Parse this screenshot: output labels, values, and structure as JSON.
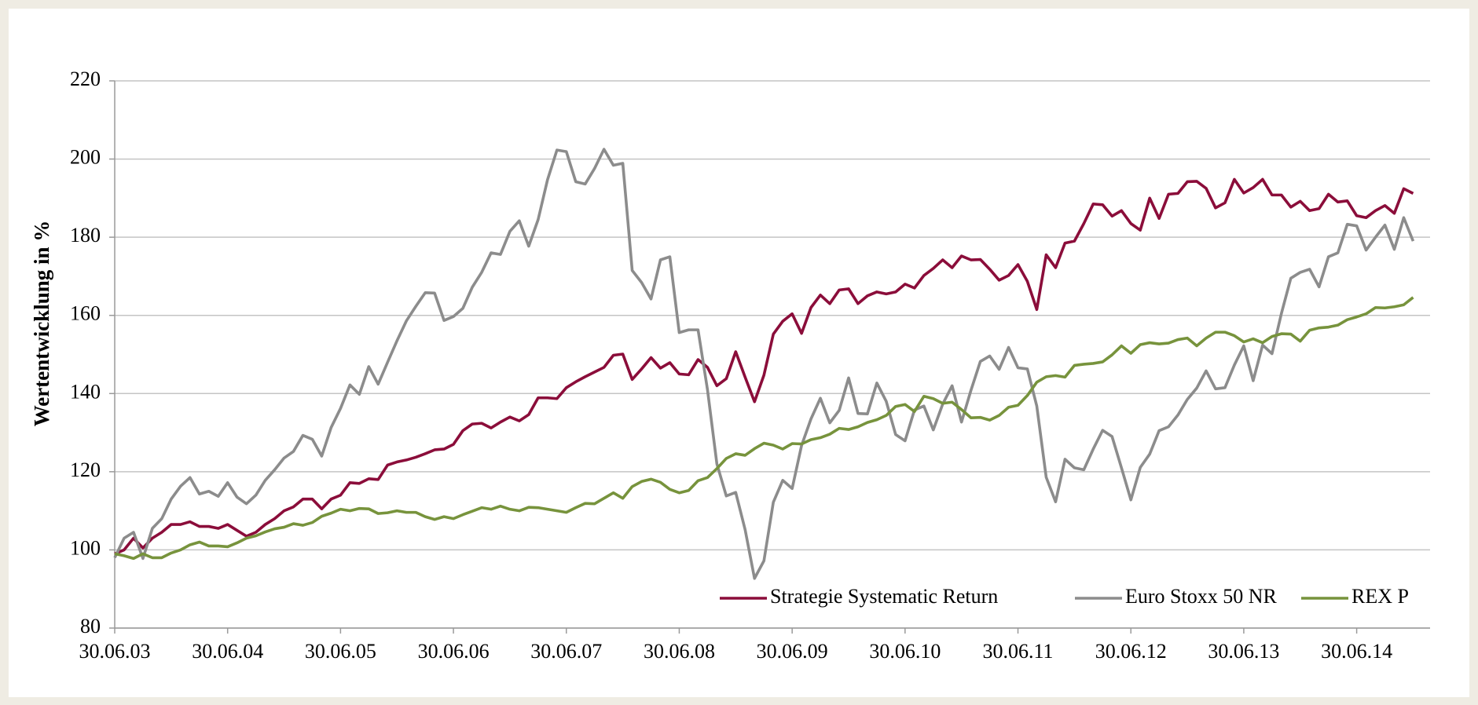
{
  "chart_data": {
    "type": "line",
    "y_label": "Wertentwicklung in %",
    "categories": [
      "30.06.03",
      null,
      null,
      null,
      null,
      null,
      null,
      null,
      null,
      null,
      null,
      null,
      "30.06.04",
      null,
      null,
      null,
      null,
      null,
      null,
      null,
      null,
      null,
      null,
      null,
      "30.06.05",
      null,
      null,
      null,
      null,
      null,
      null,
      null,
      null,
      null,
      null,
      null,
      "30.06.06",
      null,
      null,
      null,
      null,
      null,
      null,
      null,
      null,
      null,
      null,
      null,
      "30.06.07",
      null,
      null,
      null,
      null,
      null,
      null,
      null,
      null,
      null,
      null,
      null,
      "30.06.08",
      null,
      null,
      null,
      null,
      null,
      null,
      null,
      null,
      null,
      null,
      null,
      "30.06.09",
      null,
      null,
      null,
      null,
      null,
      null,
      null,
      null,
      null,
      null,
      null,
      "30.06.10",
      null,
      null,
      null,
      null,
      null,
      null,
      null,
      null,
      null,
      null,
      null,
      "30.06.11",
      null,
      null,
      null,
      null,
      null,
      null,
      null,
      null,
      null,
      null,
      null,
      "30.06.12",
      null,
      null,
      null,
      null,
      null,
      null,
      null,
      null,
      null,
      null,
      null,
      "30.06.13",
      null,
      null,
      null,
      null,
      null,
      null,
      null,
      null,
      null,
      null,
      null,
      "30.06.14",
      null,
      null,
      null,
      null,
      null,
      null
    ],
    "series": [
      {
        "name": "Strategie Systematic Return",
        "color": "#8b0d3a",
        "values": [
          99,
          100,
          103,
          100.5,
          103,
          104.5,
          106.5,
          106.5,
          107.2,
          106,
          106,
          105.5,
          106.5,
          105,
          103.5,
          104.5,
          106.5,
          108,
          110,
          111,
          113,
          113,
          110.5,
          113,
          114,
          117.2,
          117,
          118.2,
          118,
          121.7,
          122.5,
          123,
          123.7,
          124.6,
          125.6,
          125.8,
          127,
          130.5,
          132.2,
          132.4,
          131.2,
          132.7,
          134,
          133,
          134.6,
          138.9,
          138.9,
          138.7,
          141.5,
          143,
          144.3,
          145.5,
          146.7,
          149.8,
          150.1,
          143.6,
          146.3,
          149.2,
          146.5,
          147.9,
          145,
          144.8,
          148.7,
          146.7,
          142,
          143.8,
          150.7,
          144.2,
          137.9,
          144.7,
          155.2,
          158.5,
          160.4,
          155.4,
          162,
          165.2,
          163,
          166.5,
          166.8,
          163,
          165,
          166,
          165.5,
          166,
          168,
          167,
          170.2,
          172,
          174.2,
          172.2,
          175.2,
          174.2,
          174.3,
          171.8,
          169,
          170.2,
          173,
          168.7,
          161.5,
          175.5,
          172.2,
          178.5,
          179,
          183.5,
          188.5,
          188.3,
          185.4,
          186.8,
          183.5,
          181.8,
          190,
          184.8,
          191,
          191.2,
          194.2,
          194.3,
          192.5,
          187.5,
          188.8,
          194.8,
          191.3,
          192.7,
          194.8,
          190.8,
          190.8,
          187.7,
          189.2,
          186.8,
          187.3,
          191,
          189,
          189.3,
          185.5,
          185,
          186.8,
          188.1,
          186.1,
          192.4,
          191.2
        ]
      },
      {
        "name": "Euro Stoxx 50 NR",
        "color": "#8c8c8c",
        "values": [
          98,
          103,
          104.5,
          97.8,
          105.5,
          108,
          113,
          116.3,
          118.5,
          114.3,
          115,
          113.7,
          117.2,
          113.5,
          111.8,
          114,
          117.8,
          120.5,
          123.5,
          125.2,
          129.3,
          128.3,
          124,
          131.3,
          136.2,
          142.2,
          139.8,
          146.9,
          142.4,
          148,
          153.5,
          158.6,
          162.3,
          165.8,
          165.7,
          158.7,
          159.7,
          161.8,
          167.2,
          171,
          176,
          175.6,
          181.5,
          184.2,
          177.7,
          184.5,
          194.7,
          202.3,
          201.9,
          194.2,
          193.6,
          197.6,
          202.5,
          198.4,
          198.9,
          171.5,
          168.4,
          164.2,
          174.2,
          175,
          155.6,
          156.3,
          156.3,
          141,
          122,
          113.8,
          114.7,
          105.2,
          92.7,
          97.2,
          112.2,
          117.8,
          115.7,
          126.7,
          133.5,
          138.8,
          132.5,
          135.7,
          144,
          134.9,
          134.8,
          142.7,
          138,
          129.5,
          127.9,
          135.8,
          136.8,
          130.7,
          137.3,
          142,
          132.7,
          140.8,
          148.2,
          149.6,
          146.2,
          151.8,
          146.6,
          146.3,
          136.8,
          118.6,
          112.3,
          123.2,
          121,
          120.5,
          125.8,
          130.6,
          129,
          121,
          112.8,
          121.1,
          124.5,
          130.5,
          131.5,
          134.5,
          138.5,
          141.4,
          145.8,
          141.2,
          141.5,
          147.3,
          152.2,
          143.3,
          152.4,
          150.2,
          160.5,
          169.5,
          171,
          171.8,
          167.3,
          175,
          176,
          183.3,
          182.9,
          176.7,
          180,
          183.1,
          176.9,
          185,
          179
        ]
      },
      {
        "name": "REX P",
        "color": "#77933c",
        "values": [
          99,
          98.5,
          97.8,
          99,
          98,
          98,
          99.2,
          100,
          101.3,
          102,
          101,
          101,
          100.8,
          101.8,
          103,
          103.6,
          104.6,
          105.4,
          105.8,
          106.7,
          106.3,
          107,
          108.6,
          109.4,
          110.4,
          110,
          110.6,
          110.5,
          109.3,
          109.5,
          110,
          109.6,
          109.6,
          108.5,
          107.8,
          108.5,
          108,
          109,
          109.9,
          110.8,
          110.4,
          111.2,
          110.4,
          110,
          110.9,
          110.8,
          110.4,
          110,
          109.6,
          110.8,
          111.9,
          111.8,
          113.2,
          114.6,
          113.2,
          116.2,
          117.5,
          118.1,
          117.3,
          115.5,
          114.6,
          115.2,
          117.7,
          118.5,
          120.8,
          123.4,
          124.6,
          124.2,
          125.9,
          127.3,
          126.8,
          125.8,
          127.2,
          127.1,
          128.2,
          128.7,
          129.6,
          131.1,
          130.8,
          131.5,
          132.6,
          133.3,
          134.4,
          136.7,
          137.2,
          135.4,
          139.3,
          138.7,
          137.5,
          137.8,
          135.9,
          133.8,
          133.9,
          133.2,
          134.4,
          136.5,
          137,
          139.5,
          142.9,
          144.3,
          144.6,
          144.2,
          147.2,
          147.5,
          147.7,
          148.1,
          149.9,
          152.2,
          150.3,
          152.5,
          153,
          152.7,
          152.9,
          153.8,
          154.2,
          152.2,
          154.2,
          155.7,
          155.7,
          154.8,
          153.2,
          154,
          153,
          154.6,
          155.3,
          155.2,
          153.4,
          156.2,
          156.8,
          157,
          157.5,
          158.9,
          159.6,
          160.4,
          162,
          161.9,
          162.2,
          162.7,
          164.6
        ]
      }
    ],
    "ylim": [
      80,
      220
    ],
    "yticks": [
      80,
      100,
      120,
      140,
      160,
      180,
      200,
      220
    ],
    "grid": true,
    "legend": "lower right"
  }
}
